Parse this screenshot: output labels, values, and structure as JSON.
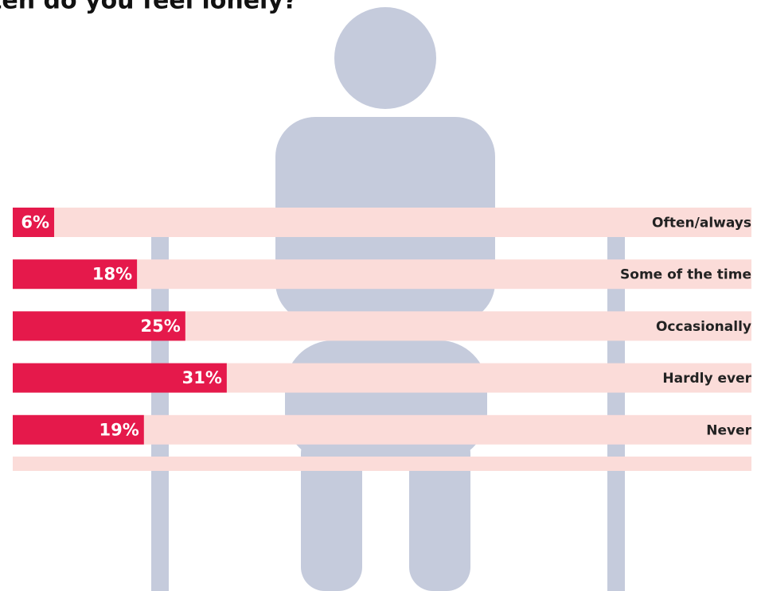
{
  "chart_data": {
    "type": "bar",
    "orientation": "horizontal",
    "title": "ten do you feel lonely?",
    "categories": [
      "Often/always",
      "Some of the time",
      "Occasionally",
      "Hardly ever",
      "Never"
    ],
    "values": [
      6,
      18,
      25,
      31,
      19
    ],
    "value_labels": [
      "6%",
      "18%",
      "25%",
      "31%",
      "19%"
    ],
    "color": "#e5194b",
    "track_color": "#fbdcd9",
    "xlim": [
      0,
      107
    ]
  }
}
